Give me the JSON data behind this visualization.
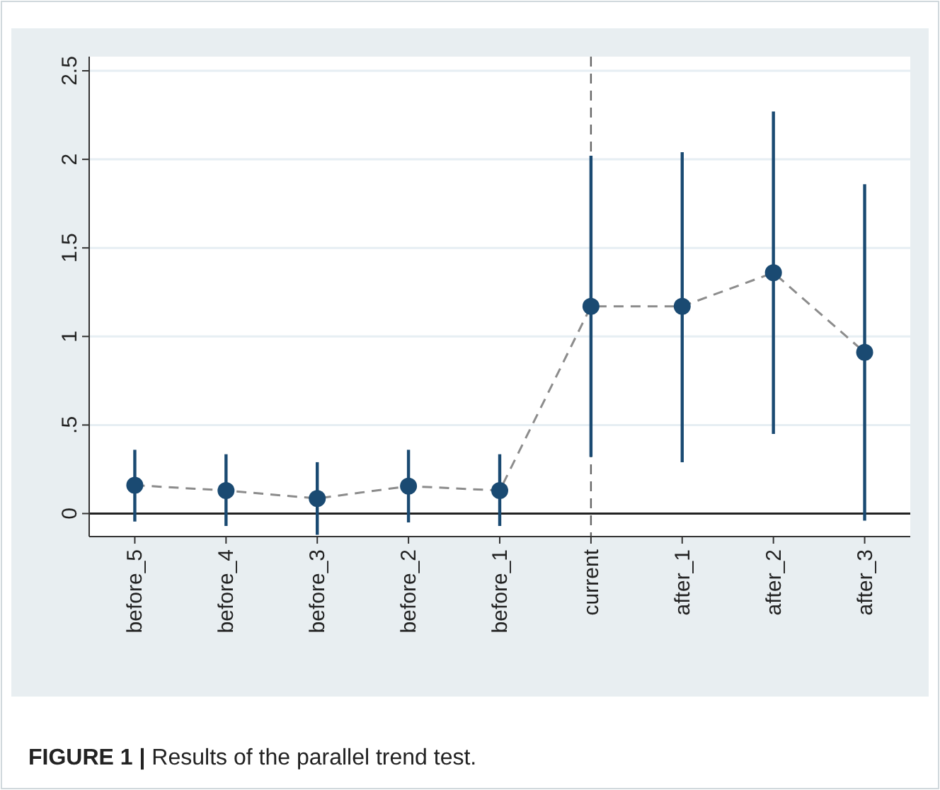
{
  "chart_data": {
    "type": "scatter",
    "categories": [
      "before_5",
      "before_4",
      "before_3",
      "before_2",
      "before_1",
      "current",
      "after_1",
      "after_2",
      "after_3"
    ],
    "series": [
      {
        "type": "line",
        "color": "#8c8c8c",
        "line_style": "dashed",
        "marker": "none",
        "values": [
          0.16,
          0.13,
          0.085,
          0.155,
          0.13,
          1.17,
          1.17,
          1.36,
          0.91
        ]
      },
      {
        "color": "#1a4a72",
        "marker": "circle",
        "values": [
          0.16,
          0.13,
          0.085,
          0.155,
          0.13,
          1.17,
          1.17,
          1.36,
          0.91
        ],
        "errors": [
          [
            -0.045,
            0.36
          ],
          [
            -0.07,
            0.335
          ],
          [
            -0.12,
            0.29
          ],
          [
            -0.05,
            0.36
          ],
          [
            -0.07,
            0.335
          ],
          [
            0.32,
            2.02
          ],
          [
            0.29,
            2.04
          ],
          [
            0.45,
            2.27
          ],
          [
            -0.04,
            1.86
          ]
        ]
      }
    ],
    "ylim": [
      -0.13,
      2.58
    ],
    "yticks": [
      0,
      {
        "value": 0.5,
        "label": ".5"
      },
      1,
      1.5,
      2,
      2.5
    ],
    "grid": "y",
    "ref_lines": [
      {
        "axis": "y",
        "value": 0,
        "color": "#222222",
        "line_style": "solid"
      },
      {
        "axis": "x",
        "value": "current",
        "color": "#666666",
        "line_style": "dashed"
      }
    ],
    "annotations": [
      "FIGURE 1 | Results of the parallel trend test."
    ]
  }
}
